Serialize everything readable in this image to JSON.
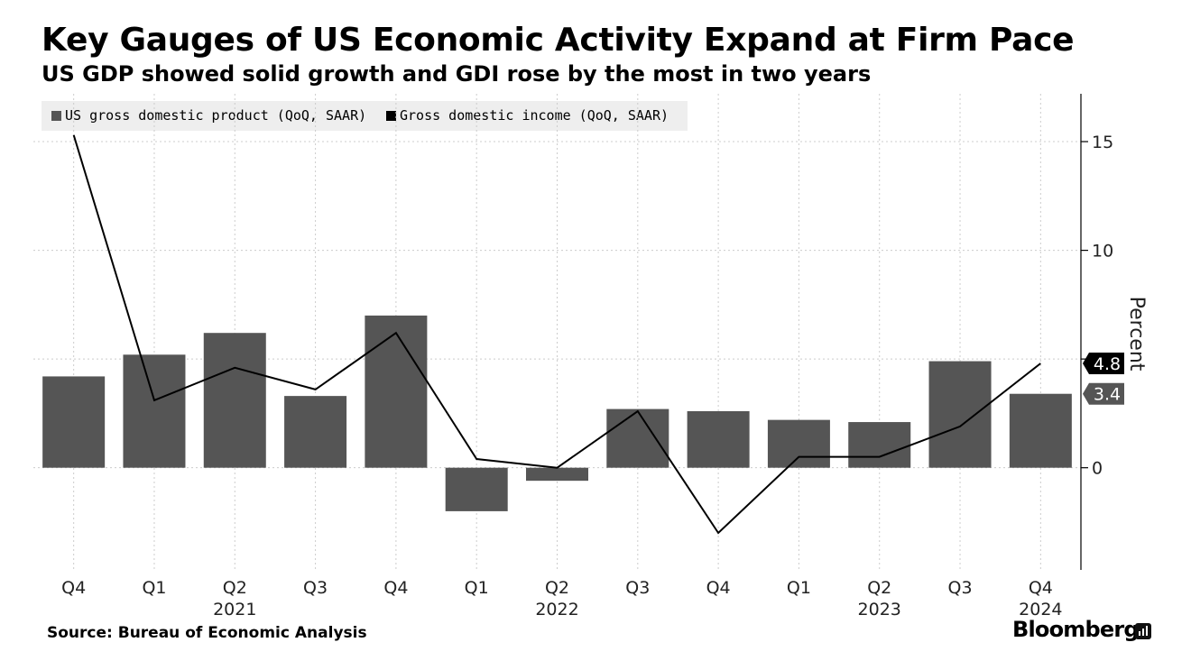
{
  "title": "Key Gauges of US Economic Activity Expand at Firm Pace",
  "subtitle": "US GDP showed solid growth and GDI rose by the most in two years",
  "source": "Source: Bureau of Economic Analysis",
  "brand": "Bloomberg",
  "brand_icon": "bloomberg-terminal-icon",
  "colors": {
    "bars": "#555555",
    "line": "#000000",
    "grid": "#cccccc",
    "legend_bg": "#eeeeee"
  },
  "chart_data": {
    "type": "bar",
    "categories": [
      "Q4",
      "Q1",
      "Q2",
      "Q3",
      "Q4",
      "Q1",
      "Q2",
      "Q3",
      "Q4",
      "Q1",
      "Q2",
      "Q3",
      "Q4"
    ],
    "year_labels": [
      {
        "label": "2021",
        "index": 2
      },
      {
        "label": "2022",
        "index": 6
      },
      {
        "label": "2023",
        "index": 10
      },
      {
        "label": "2024",
        "index": 12
      }
    ],
    "series": [
      {
        "name": "US gross domestic product (QoQ, SAAR)",
        "type": "bar",
        "values": [
          4.2,
          5.2,
          6.2,
          3.3,
          7.0,
          -2.0,
          -0.6,
          2.7,
          2.6,
          2.2,
          2.1,
          4.9,
          3.4
        ]
      },
      {
        "name": "Gross domestic income (QoQ, SAAR)",
        "type": "line",
        "values": [
          15.3,
          3.1,
          4.6,
          3.6,
          6.2,
          0.4,
          0.0,
          2.6,
          -3.0,
          0.5,
          0.5,
          1.9,
          4.8
        ]
      }
    ],
    "ylabel": "Percent",
    "yticks": [
      0,
      5,
      10,
      15
    ],
    "ytick_labels": [
      "0",
      "",
      "10",
      "15"
    ],
    "ylim": [
      -4.7,
      17.2
    ],
    "last_value_labels": [
      "4.8",
      "3.4"
    ],
    "grid": true,
    "legend_position": "top-left"
  }
}
